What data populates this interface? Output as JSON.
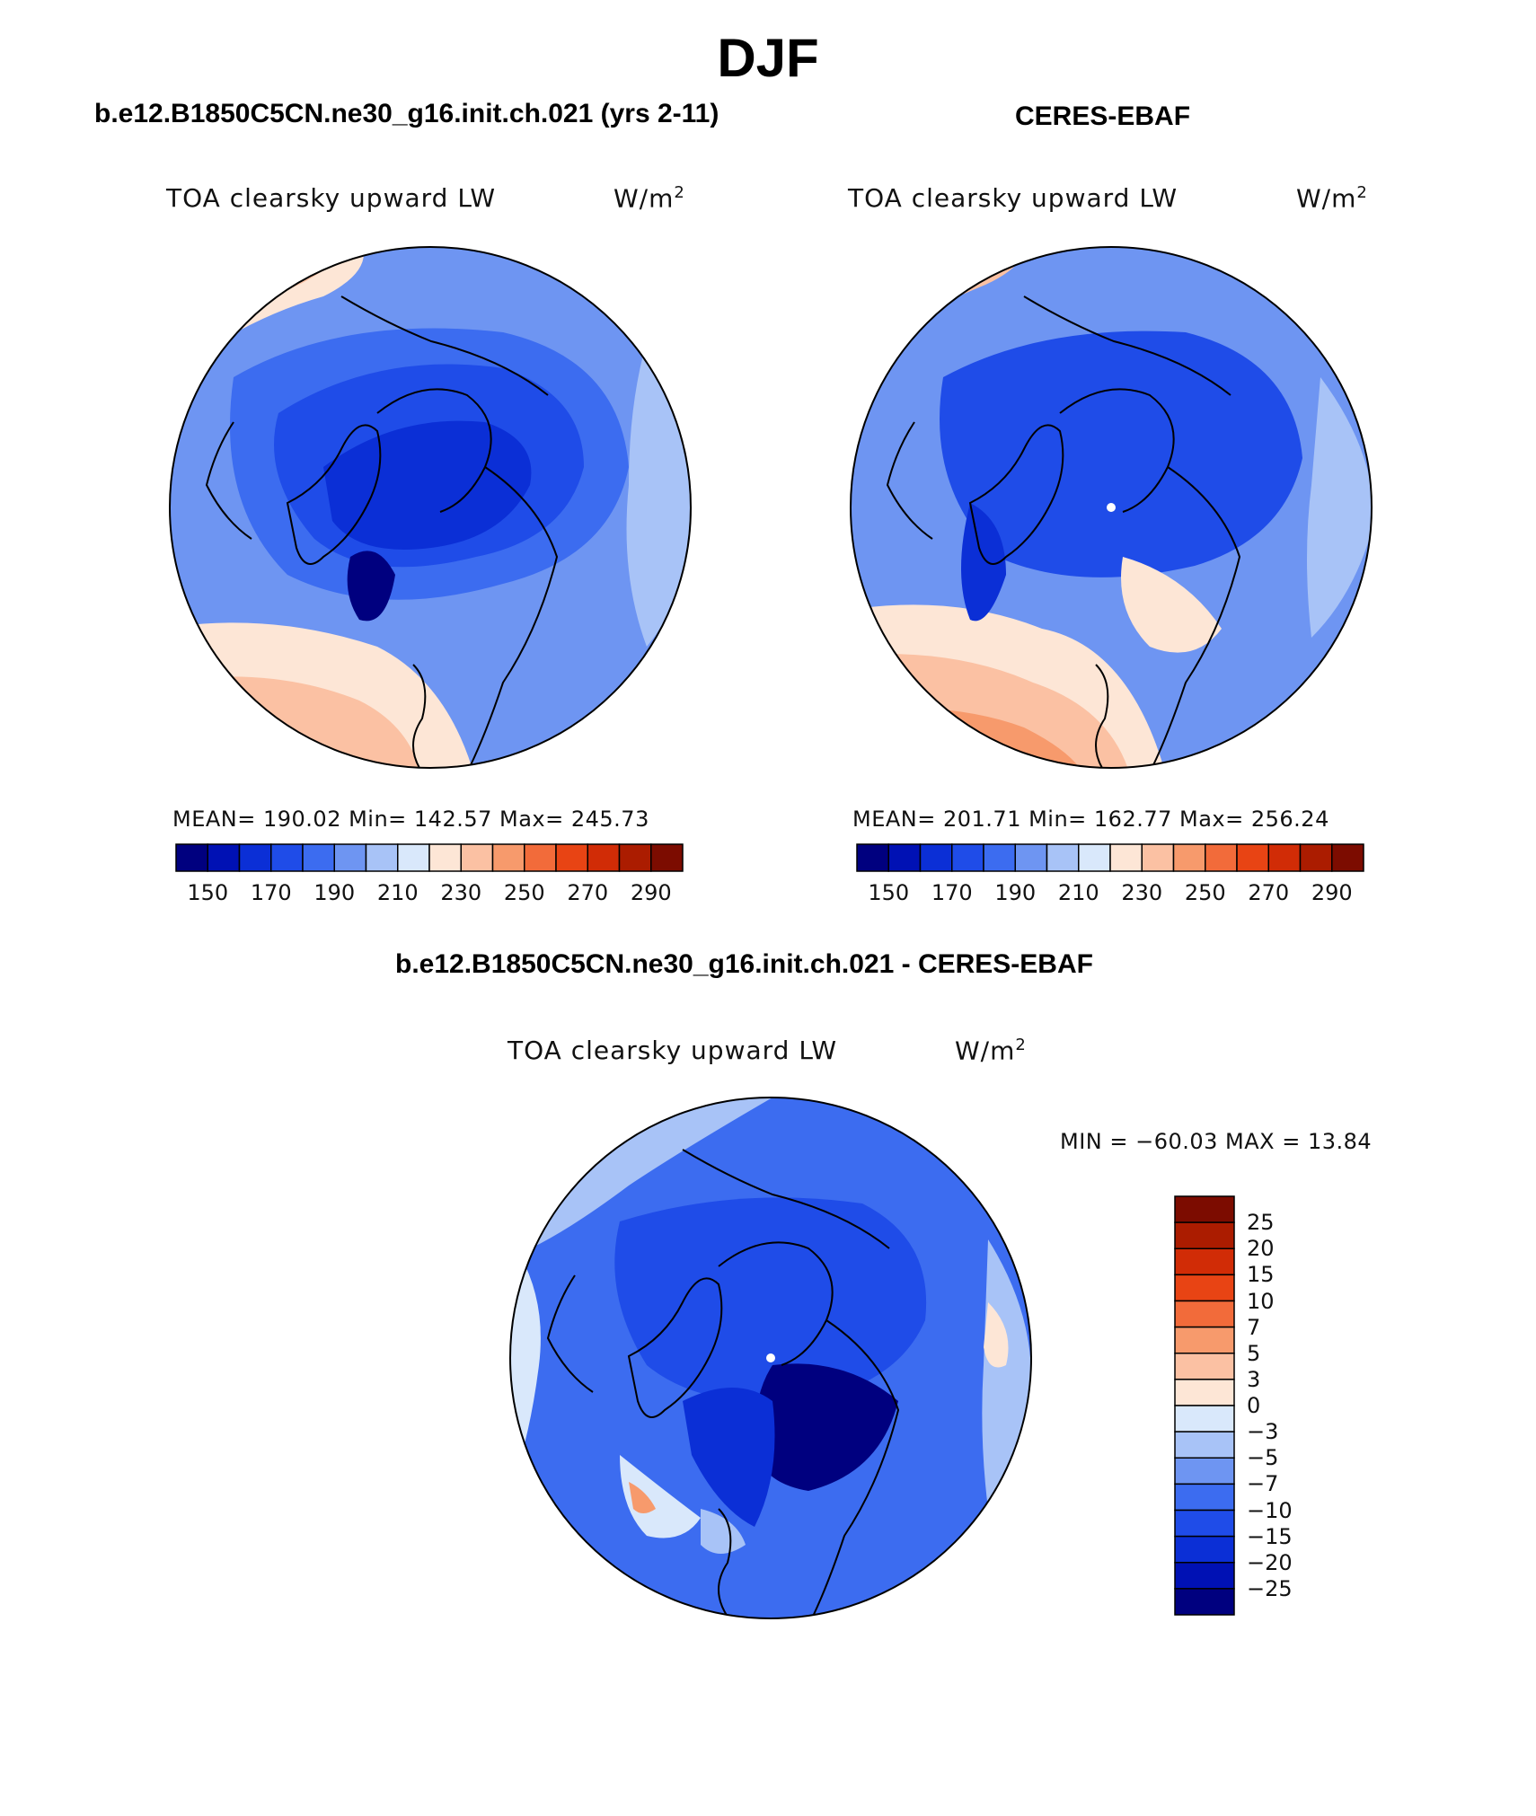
{
  "title": "DJF",
  "panels": [
    {
      "id": "model",
      "title": "b.e12.B1850C5CN.ne30_g16.init.ch.021 (yrs 2-11)",
      "variable": "TOA clearsky upward LW",
      "units": "W/m",
      "units_sup": "2",
      "stats": "MEAN= 190.02   Min= 142.57   Max= 245.73"
    },
    {
      "id": "obs",
      "title": "CERES-EBAF",
      "variable": "TOA clearsky upward LW",
      "units": "W/m",
      "units_sup": "2",
      "stats": "MEAN= 201.71   Min= 162.77   Max= 256.24"
    },
    {
      "id": "diff",
      "title": "b.e12.B1850C5CN.ne30_g16.init.ch.021 - CERES-EBAF",
      "variable": "TOA clearsky upward LW",
      "units": "W/m",
      "units_sup": "2",
      "stats": "MIN = −60.03 MAX =   13.84"
    }
  ],
  "colorbar_abs": {
    "tick_labels": [
      "150",
      "170",
      "190",
      "210",
      "230",
      "250",
      "270",
      "290"
    ],
    "colors": [
      "#00007f",
      "#0011b4",
      "#0b2fd6",
      "#1f4ce8",
      "#3c6cf0",
      "#6e95f2",
      "#a8c3f7",
      "#d9e8fb",
      "#fde6d6",
      "#fbc1a3",
      "#f79a6c",
      "#f26b3a",
      "#e84414",
      "#d12c06",
      "#ab1c00",
      "#7c0c00"
    ]
  },
  "colorbar_diff": {
    "levels": [
      "25",
      "20",
      "15",
      "10",
      "7",
      "5",
      "3",
      "0",
      "−3",
      "−5",
      "−7",
      "−10",
      "−15",
      "−20",
      "−25"
    ],
    "colors": [
      "#7c0c00",
      "#ab1c00",
      "#d12c06",
      "#e84414",
      "#f26b3a",
      "#f79a6c",
      "#fbc1a3",
      "#fde6d6",
      "#d9e8fb",
      "#a8c3f7",
      "#6e95f2",
      "#3c6cf0",
      "#1f4ce8",
      "#0b2fd6",
      "#0011b4",
      "#00007f"
    ]
  }
}
